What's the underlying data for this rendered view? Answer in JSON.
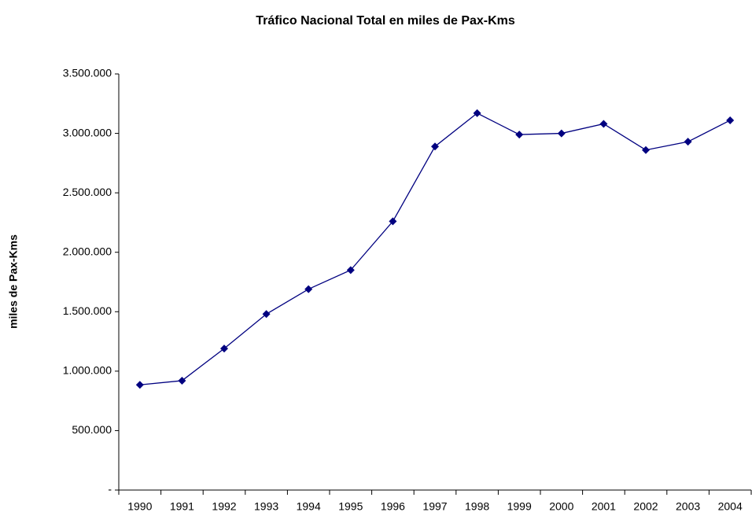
{
  "chart_data": {
    "type": "line",
    "title": "Tráfico Nacional Total en miles de Pax-Kms",
    "y_label": "miles de Pax-Kms",
    "categories": [
      "1990",
      "1991",
      "1992",
      "1993",
      "1994",
      "1995",
      "1996",
      "1997",
      "1998",
      "1999",
      "2000",
      "2001",
      "2002",
      "2003",
      "2004"
    ],
    "series": [
      {
        "color": "#000080",
        "values": [
          885000,
          920000,
          1190000,
          1480000,
          1690000,
          1850000,
          2260000,
          2890000,
          3170000,
          2990000,
          3000000,
          3080000,
          2860000,
          2930000,
          3110000
        ]
      }
    ],
    "ylim": [
      0,
      3500000
    ],
    "yticks": [
      {
        "value": 0,
        "label": "-"
      },
      {
        "value": 500000,
        "label": "500.000"
      },
      {
        "value": 1000000,
        "label": "1.000.000"
      },
      {
        "value": 1500000,
        "label": "1.500.000"
      },
      {
        "value": 2000000,
        "label": "2.000.000"
      },
      {
        "value": 2500000,
        "label": "2.500.000"
      },
      {
        "value": 3000000,
        "label": "3.000.000"
      },
      {
        "value": 3500000,
        "label": "3.500.000"
      }
    ],
    "grid": false
  }
}
